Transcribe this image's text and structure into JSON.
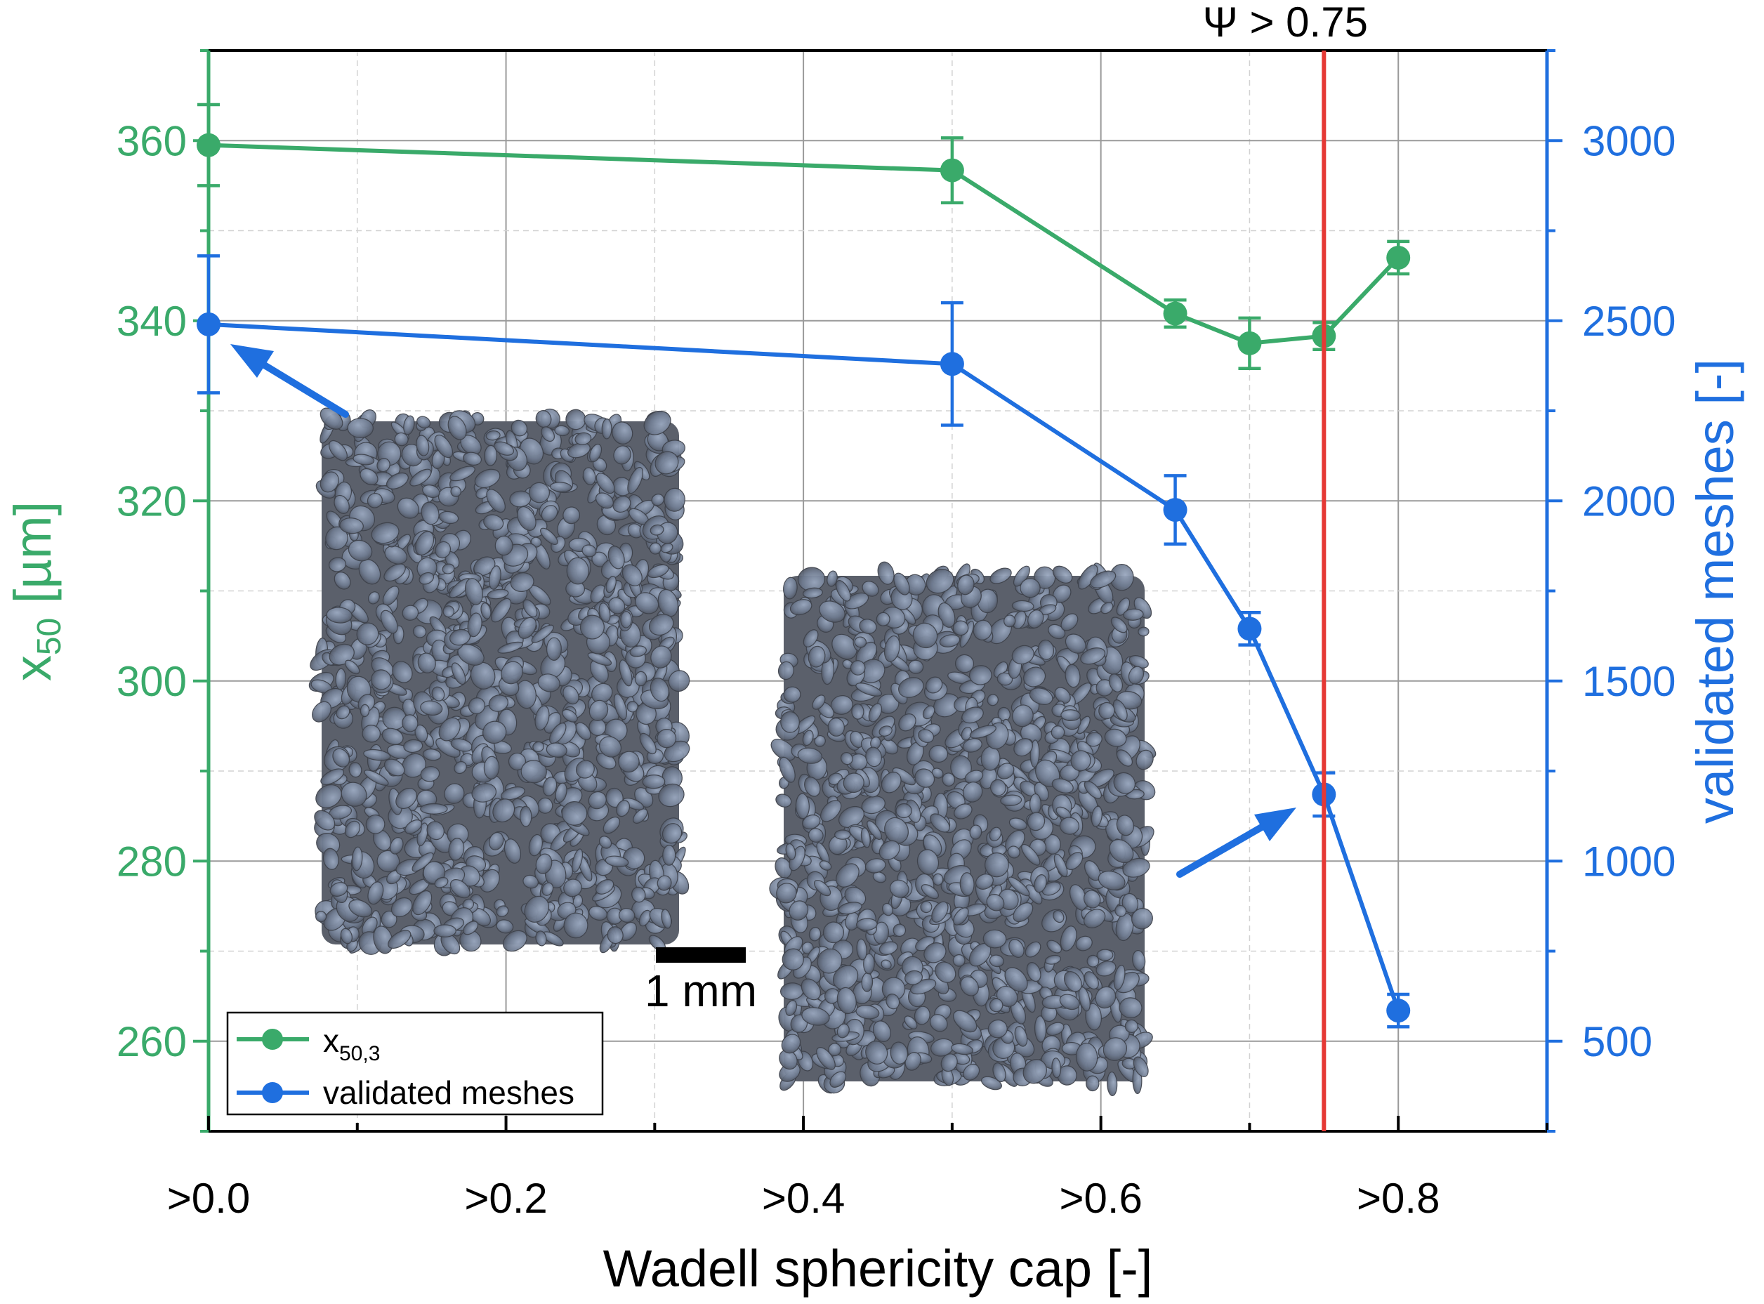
{
  "chart_data": {
    "type": "line",
    "xlabel": "Wadell sphericity cap [-]",
    "x_tick_labels": [
      ">0.0",
      ">0.2",
      ">0.4",
      ">0.6",
      ">0.8"
    ],
    "x_tick_values": [
      0.0,
      0.2,
      0.4,
      0.6,
      0.8
    ],
    "xlim": [
      0.0,
      0.9
    ],
    "y_left": {
      "label_main": "x",
      "label_sub": "50",
      "label_unit": " [µm]",
      "ylim": [
        250,
        370
      ],
      "ticks": [
        260,
        280,
        300,
        320,
        340,
        360
      ],
      "color": "#3aaa6a"
    },
    "y_right": {
      "label": "validated meshes [-]",
      "ylim": [
        250,
        3250
      ],
      "ticks": [
        500,
        1000,
        1500,
        2000,
        2500,
        3000
      ],
      "color": "#1f6fdf"
    },
    "x": [
      0.0,
      0.5,
      0.65,
      0.7,
      0.75,
      0.8
    ],
    "series": [
      {
        "name": "x50,3",
        "legend_main": "x",
        "legend_sub": "50,3",
        "axis": "left",
        "color": "#3aaa6a",
        "values": [
          359.5,
          356.7,
          340.8,
          337.5,
          338.3,
          347.0
        ],
        "errors": [
          4.5,
          3.6,
          1.5,
          2.8,
          1.5,
          1.8
        ]
      },
      {
        "name": "validated meshes",
        "legend_label": "validated meshes",
        "axis": "right",
        "color": "#1f6fdf",
        "values": [
          2490,
          2380,
          1975,
          1645,
          1185,
          585
        ],
        "errors": [
          190,
          170,
          95,
          45,
          60,
          45
        ]
      }
    ],
    "vline": {
      "x": 0.75,
      "color": "#e53935",
      "label": "Ψ > 0.75"
    },
    "scale_bar_label": "1 mm",
    "legend_position": "bottom-left",
    "grid": true
  }
}
